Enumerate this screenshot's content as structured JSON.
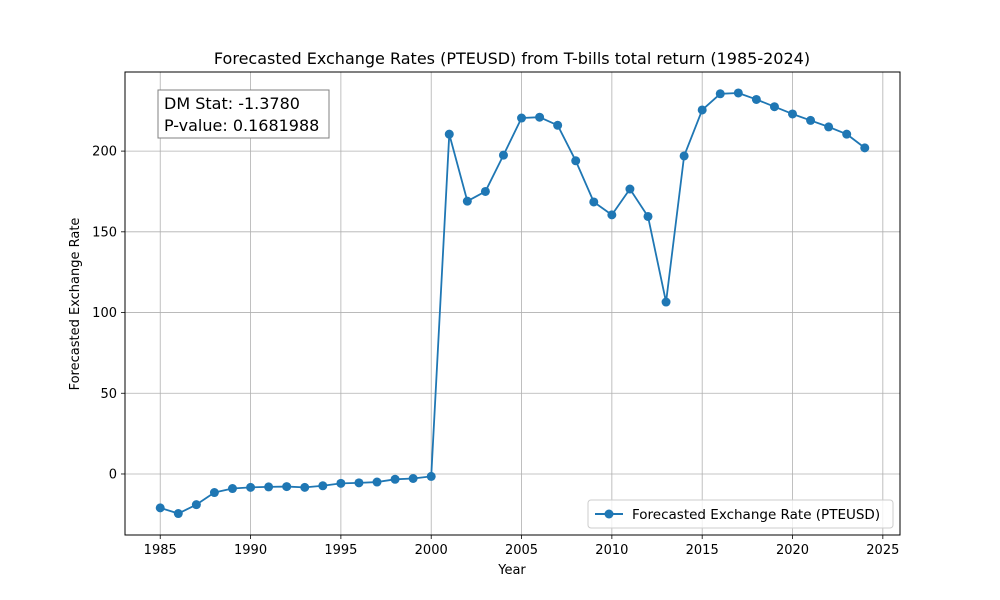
{
  "chart_data": {
    "type": "line",
    "title": "Forecasted Exchange Rates (PTEUSD) from T-bills total return (1985-2024)",
    "xlabel": "Year",
    "ylabel": "Forecasted Exchange Rate",
    "xlim": [
      1983.05,
      2025.95
    ],
    "ylim": [
      -37.8,
      249.0
    ],
    "xticks": [
      1985,
      1990,
      1995,
      2000,
      2005,
      2010,
      2015,
      2020,
      2025
    ],
    "yticks": [
      0,
      50,
      100,
      150,
      200
    ],
    "grid": true,
    "legend_position": "lower right",
    "annotation": {
      "line1": "DM Stat: -1.3780",
      "line2": "P-value: 0.1681988",
      "position": "upper left"
    },
    "series": [
      {
        "name": "Forecasted Exchange Rate (PTEUSD)",
        "color": "#1f77b4",
        "marker": "circle",
        "x": [
          1985,
          1986,
          1987,
          1988,
          1989,
          1990,
          1991,
          1992,
          1993,
          1994,
          1995,
          1996,
          1997,
          1998,
          1999,
          2000,
          2001,
          2002,
          2003,
          2004,
          2005,
          2006,
          2007,
          2008,
          2009,
          2010,
          2011,
          2012,
          2013,
          2014,
          2015,
          2016,
          2017,
          2018,
          2019,
          2020,
          2021,
          2022,
          2023,
          2024
        ],
        "y": [
          -21,
          -24.5,
          -19,
          -11.5,
          -9,
          -8.3,
          -8,
          -7.8,
          -8.3,
          -7.3,
          -5.8,
          -5.5,
          -5,
          -3.3,
          -2.8,
          -1.5,
          210.5,
          169,
          175,
          197.5,
          220.5,
          221,
          216,
          194,
          168.5,
          160.5,
          176.5,
          159.5,
          106.5,
          197,
          225.5,
          235.5,
          236,
          232,
          227.5,
          223,
          219,
          215,
          210.5,
          202
        ]
      }
    ]
  }
}
